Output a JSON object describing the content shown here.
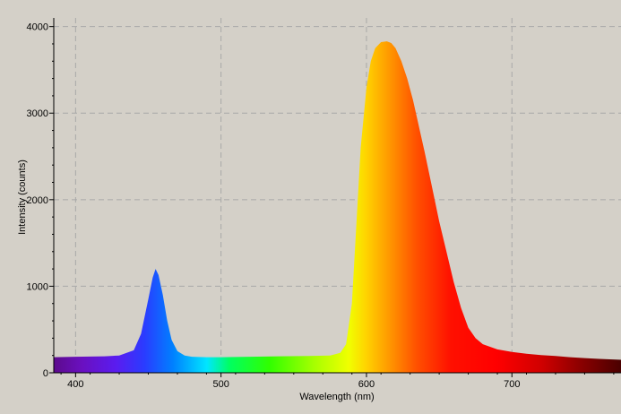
{
  "chart_data": {
    "type": "area",
    "xlabel": "Wavelength (nm)",
    "ylabel": "Intensity (counts)",
    "xlim": [
      385,
      775
    ],
    "ylim": [
      0,
      4100
    ],
    "x_ticks": [
      400,
      500,
      600,
      700
    ],
    "y_ticks": [
      0,
      1000,
      2000,
      3000,
      4000
    ],
    "x_tick_labels": [
      "400",
      "500",
      "600",
      "700"
    ],
    "y_tick_labels": [
      "0",
      "1000",
      "2000",
      "3000",
      "4000"
    ],
    "grid": true,
    "fill": "wavelength-spectrum-colors",
    "series": [
      {
        "x": [
          385,
          400,
          420,
          430,
          440,
          445,
          450,
          453,
          455,
          457,
          460,
          463,
          466,
          470,
          475,
          480,
          490,
          500,
          520,
          540,
          560,
          575,
          582,
          586,
          590,
          593,
          596,
          600,
          603,
          606,
          610,
          614,
          617,
          620,
          624,
          628,
          632,
          636,
          640,
          645,
          650,
          655,
          660,
          665,
          670,
          675,
          680,
          690,
          700,
          710,
          720,
          730,
          740,
          750,
          760,
          775
        ],
        "y": [
          180,
          185,
          190,
          200,
          260,
          450,
          850,
          1100,
          1200,
          1130,
          900,
          600,
          380,
          250,
          200,
          185,
          180,
          180,
          185,
          190,
          195,
          200,
          230,
          330,
          800,
          1700,
          2600,
          3300,
          3600,
          3750,
          3820,
          3830,
          3810,
          3750,
          3600,
          3400,
          3150,
          2850,
          2550,
          2150,
          1750,
          1400,
          1050,
          750,
          520,
          400,
          330,
          270,
          240,
          220,
          205,
          195,
          180,
          170,
          160,
          150
        ]
      }
    ]
  }
}
